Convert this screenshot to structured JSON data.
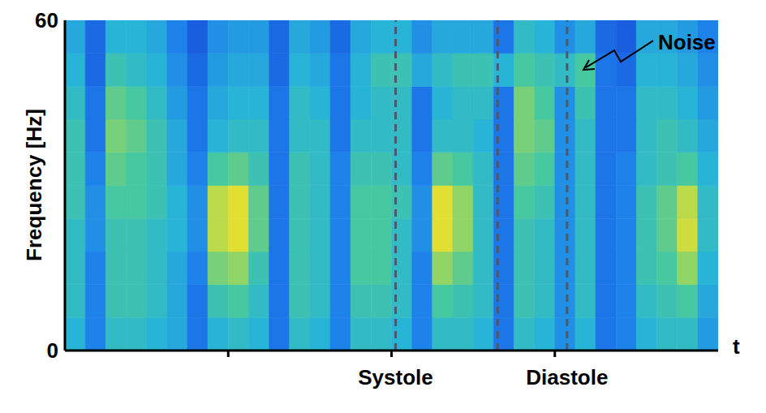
{
  "chart_data": {
    "type": "heatmap",
    "xlabel": "t",
    "ylabel": "Frequency [Hz]",
    "xlim": [
      0,
      32
    ],
    "xticks": [
      8,
      16,
      24
    ],
    "ylim": [
      0,
      60
    ],
    "yticks": [
      0,
      60
    ],
    "tick_labels": "y",
    "zlim": [
      0,
      1
    ],
    "cells": [
      [
        0.45,
        0.25,
        0.5,
        0.5,
        0.45,
        0.4,
        0.2,
        0.45,
        0.5,
        0.45,
        0.2,
        0.5,
        0.45,
        0.25,
        0.5,
        0.5,
        0.45,
        0.25,
        0.5,
        0.5,
        0.45,
        0.2,
        0.5,
        0.45,
        0.3,
        0.45,
        0.2,
        0.25,
        0.45,
        0.5,
        0.5,
        0.35
      ],
      [
        0.5,
        0.25,
        0.55,
        0.55,
        0.5,
        0.4,
        0.2,
        0.55,
        0.6,
        0.5,
        0.2,
        0.55,
        0.5,
        0.25,
        0.55,
        0.55,
        0.5,
        0.25,
        0.6,
        0.55,
        0.5,
        0.2,
        0.55,
        0.5,
        0.3,
        0.5,
        0.2,
        0.25,
        0.5,
        0.55,
        0.6,
        0.4
      ],
      [
        0.5,
        0.25,
        0.55,
        0.55,
        0.5,
        0.4,
        0.25,
        0.7,
        0.75,
        0.55,
        0.2,
        0.55,
        0.5,
        0.25,
        0.6,
        0.6,
        0.5,
        0.25,
        0.75,
        0.65,
        0.5,
        0.2,
        0.55,
        0.5,
        0.3,
        0.5,
        0.2,
        0.25,
        0.55,
        0.6,
        0.75,
        0.45
      ],
      [
        0.5,
        0.3,
        0.55,
        0.55,
        0.5,
        0.45,
        0.3,
        0.85,
        0.95,
        0.65,
        0.2,
        0.55,
        0.5,
        0.25,
        0.6,
        0.6,
        0.5,
        0.3,
        0.95,
        0.75,
        0.5,
        0.2,
        0.55,
        0.5,
        0.3,
        0.5,
        0.2,
        0.25,
        0.55,
        0.65,
        0.9,
        0.5
      ],
      [
        0.55,
        0.3,
        0.6,
        0.6,
        0.55,
        0.45,
        0.3,
        0.85,
        0.95,
        0.65,
        0.2,
        0.55,
        0.5,
        0.25,
        0.6,
        0.6,
        0.55,
        0.3,
        0.95,
        0.75,
        0.5,
        0.2,
        0.6,
        0.55,
        0.3,
        0.5,
        0.2,
        0.25,
        0.55,
        0.65,
        0.85,
        0.5
      ],
      [
        0.55,
        0.25,
        0.65,
        0.6,
        0.55,
        0.4,
        0.25,
        0.6,
        0.65,
        0.55,
        0.2,
        0.55,
        0.5,
        0.25,
        0.55,
        0.55,
        0.5,
        0.25,
        0.65,
        0.6,
        0.5,
        0.2,
        0.65,
        0.6,
        0.3,
        0.5,
        0.2,
        0.25,
        0.5,
        0.55,
        0.6,
        0.45
      ],
      [
        0.55,
        0.2,
        0.7,
        0.65,
        0.55,
        0.4,
        0.2,
        0.45,
        0.5,
        0.5,
        0.2,
        0.5,
        0.5,
        0.2,
        0.5,
        0.5,
        0.5,
        0.2,
        0.5,
        0.5,
        0.45,
        0.2,
        0.7,
        0.65,
        0.3,
        0.5,
        0.2,
        0.2,
        0.5,
        0.55,
        0.5,
        0.4
      ],
      [
        0.5,
        0.2,
        0.65,
        0.6,
        0.5,
        0.35,
        0.2,
        0.4,
        0.45,
        0.45,
        0.2,
        0.5,
        0.45,
        0.2,
        0.45,
        0.5,
        0.5,
        0.2,
        0.45,
        0.5,
        0.5,
        0.2,
        0.7,
        0.6,
        0.3,
        0.55,
        0.2,
        0.2,
        0.5,
        0.5,
        0.45,
        0.35
      ],
      [
        0.45,
        0.15,
        0.55,
        0.5,
        0.45,
        0.3,
        0.15,
        0.35,
        0.4,
        0.4,
        0.15,
        0.45,
        0.4,
        0.2,
        0.45,
        0.55,
        0.55,
        0.4,
        0.5,
        0.55,
        0.55,
        0.45,
        0.6,
        0.55,
        0.5,
        0.6,
        0.2,
        0.15,
        0.45,
        0.45,
        0.4,
        0.3
      ],
      [
        0.4,
        0.15,
        0.45,
        0.45,
        0.4,
        0.25,
        0.1,
        0.3,
        0.35,
        0.35,
        0.15,
        0.4,
        0.35,
        0.15,
        0.4,
        0.45,
        0.45,
        0.3,
        0.4,
        0.4,
        0.4,
        0.2,
        0.5,
        0.45,
        0.3,
        0.4,
        0.15,
        0.1,
        0.4,
        0.4,
        0.35,
        0.25
      ]
    ],
    "vlines": [
      {
        "x": 16.2,
        "label": "Systole"
      },
      {
        "x": 21.2
      },
      {
        "x": 24.6,
        "label": "Diastole"
      }
    ],
    "annotations": [
      {
        "text": "Noise",
        "x": 25.4,
        "y": 51
      }
    ]
  }
}
